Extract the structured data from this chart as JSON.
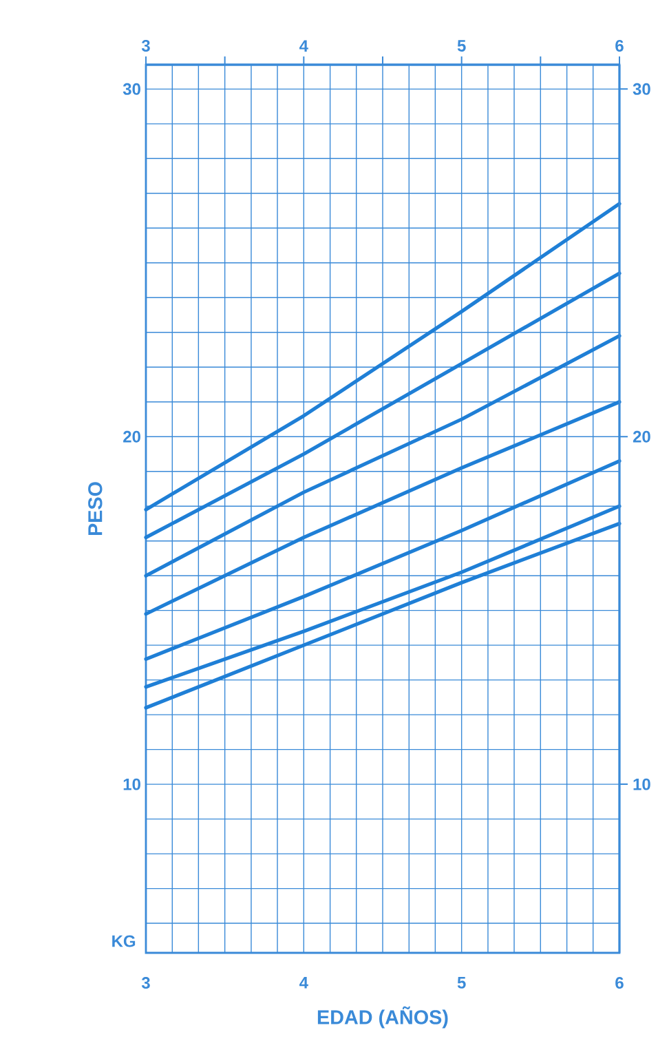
{
  "chart_data": {
    "type": "line",
    "xlabel": "EDAD (AÑOS)",
    "ylabel": "PESO",
    "annotations": [
      "KG"
    ],
    "x": [
      3,
      4,
      5,
      6
    ],
    "series": [
      {
        "color": "#1f7fd6",
        "values": [
          17.9,
          20.6,
          23.6,
          26.7
        ]
      },
      {
        "color": "#1f7fd6",
        "values": [
          17.1,
          19.5,
          22.1,
          24.7
        ]
      },
      {
        "color": "#1f7fd6",
        "values": [
          16.0,
          18.4,
          20.5,
          22.9
        ]
      },
      {
        "color": "#1f7fd6",
        "values": [
          14.9,
          17.1,
          19.1,
          21.0
        ]
      },
      {
        "color": "#1f7fd6",
        "values": [
          13.6,
          15.4,
          17.3,
          19.3
        ]
      },
      {
        "color": "#1f7fd6",
        "values": [
          12.8,
          14.4,
          16.1,
          18.0
        ]
      },
      {
        "color": "#1f7fd6",
        "values": [
          12.2,
          14.0,
          15.8,
          17.5
        ]
      }
    ],
    "xlim": [
      3,
      6
    ],
    "xticks": [
      3,
      {
        "value": 3.167,
        "label": null
      },
      {
        "value": 3.333,
        "label": null
      },
      {
        "value": 3.5,
        "label": null
      },
      {
        "value": 3.667,
        "label": null
      },
      {
        "value": 3.833,
        "label": null
      },
      4,
      {
        "value": 4.167,
        "label": null
      },
      {
        "value": 4.333,
        "label": null
      },
      {
        "value": 4.5,
        "label": null
      },
      {
        "value": 4.667,
        "label": null
      },
      {
        "value": 4.833,
        "label": null
      },
      5,
      {
        "value": 5.167,
        "label": null
      },
      {
        "value": 5.333,
        "label": null
      },
      {
        "value": 5.5,
        "label": null
      },
      {
        "value": 5.667,
        "label": null
      },
      {
        "value": 5.833,
        "label": null
      },
      6
    ],
    "x2lim": [
      3,
      6
    ],
    "x2ticks": [
      3,
      {
        "value": 3.5,
        "label": null
      },
      4,
      {
        "value": 4.5,
        "label": null
      },
      5,
      {
        "value": 5.5,
        "label": null
      },
      6
    ],
    "ylim": [
      5.15,
      30.7
    ],
    "yticks": [
      {
        "value": 6,
        "label": null
      },
      {
        "value": 7,
        "label": null
      },
      {
        "value": 8,
        "label": null
      },
      {
        "value": 9,
        "label": null
      },
      10,
      {
        "value": 11,
        "label": null
      },
      {
        "value": 12,
        "label": null
      },
      {
        "value": 13,
        "label": null
      },
      {
        "value": 14,
        "label": null
      },
      {
        "value": 15,
        "label": null
      },
      {
        "value": 16,
        "label": null
      },
      {
        "value": 17,
        "label": null
      },
      {
        "value": 18,
        "label": null
      },
      {
        "value": 19,
        "label": null
      },
      20,
      {
        "value": 21,
        "label": null
      },
      {
        "value": 22,
        "label": null
      },
      {
        "value": 23,
        "label": null
      },
      {
        "value": 24,
        "label": null
      },
      {
        "value": 25,
        "label": null
      },
      {
        "value": 26,
        "label": null
      },
      {
        "value": 27,
        "label": null
      },
      {
        "value": 28,
        "label": null
      },
      {
        "value": 29,
        "label": null
      },
      30
    ],
    "y2lim": [
      5.15,
      30.7
    ],
    "y2ticks": [
      10,
      20,
      30
    ],
    "grid": true,
    "line_style": "solid"
  }
}
